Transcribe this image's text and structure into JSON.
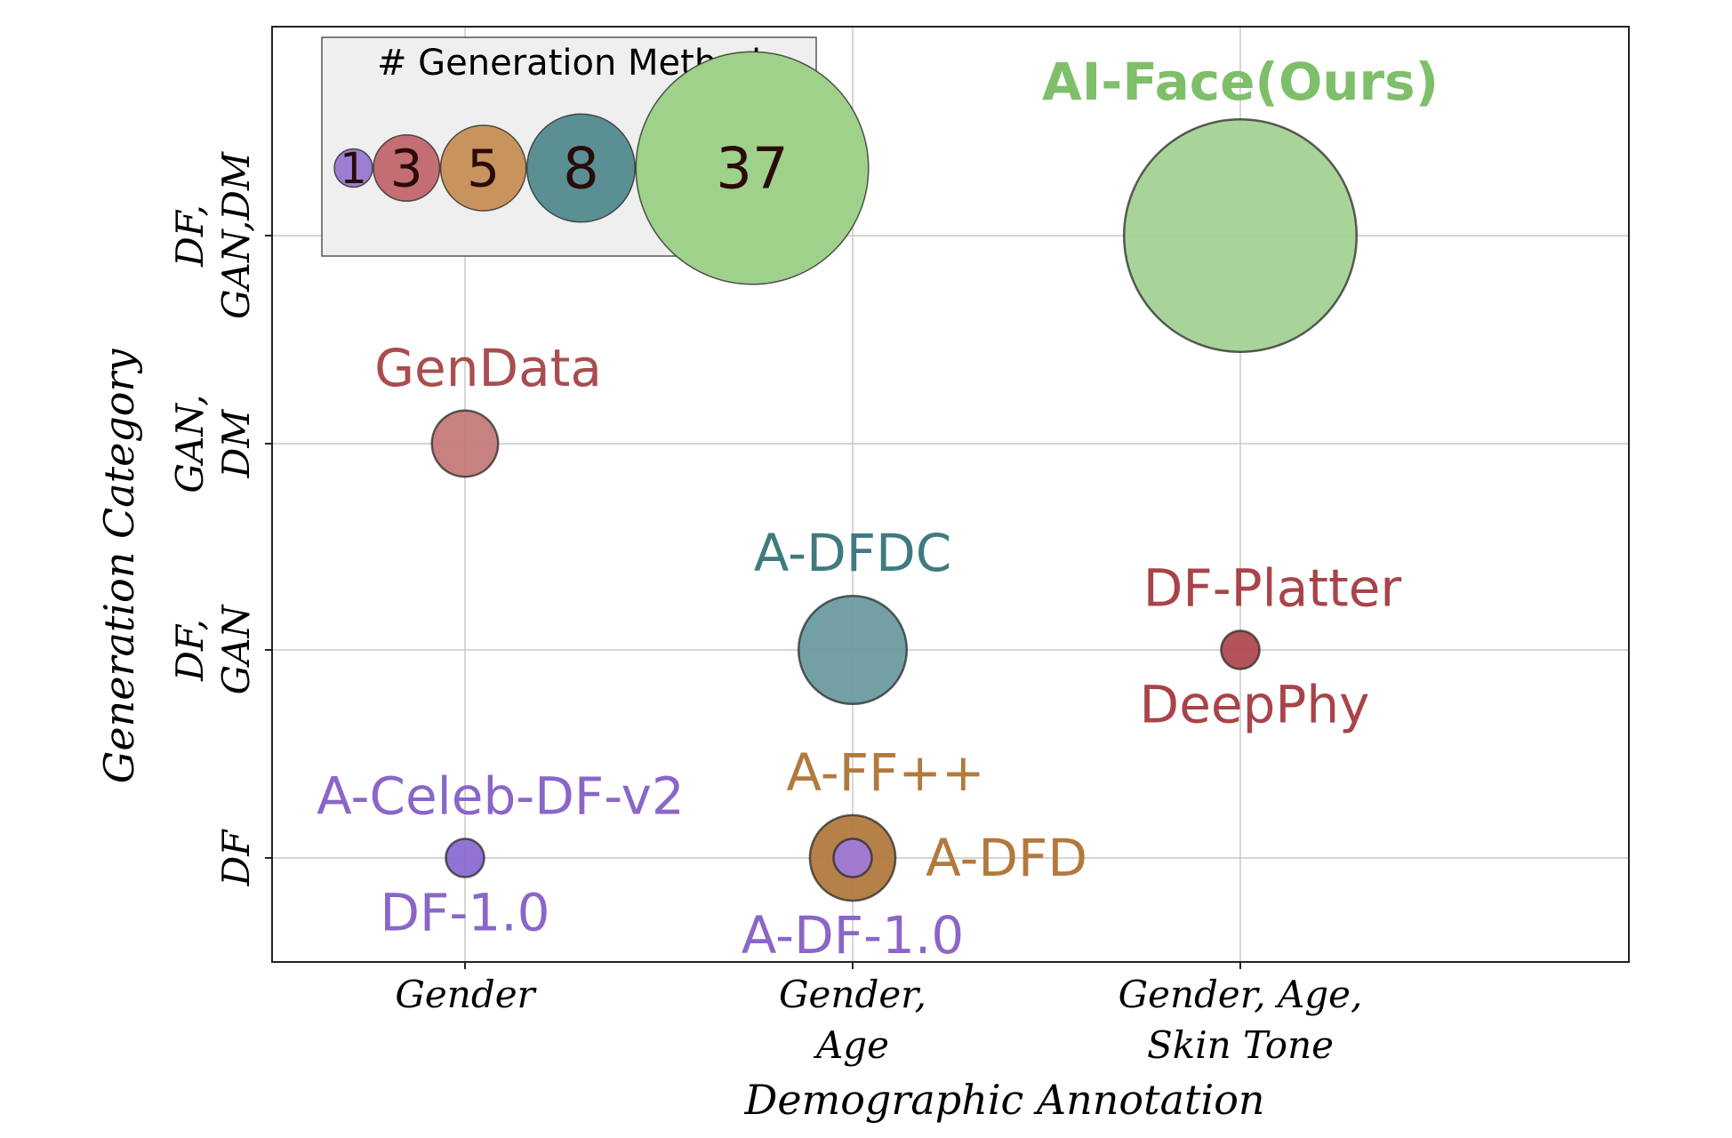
{
  "chart_data": {
    "type": "scatter",
    "title": "",
    "xlabel": "Demographic Annotation",
    "ylabel": "Generation Category",
    "x_categories": [
      [
        "Gender"
      ],
      [
        "Gender,",
        "Age"
      ],
      [
        "Gender, Age,",
        "Skin Tone"
      ]
    ],
    "y_categories": [
      [
        "DF"
      ],
      [
        "DF,",
        "GAN"
      ],
      [
        "GAN,",
        "DM"
      ],
      [
        "DF,",
        "GAN,DM"
      ]
    ],
    "grid": true,
    "legend": {
      "title": "# Generation Method",
      "placement": "top-left",
      "sizes": [
        {
          "value": 1,
          "label": "1",
          "color": "#9b7fd0"
        },
        {
          "value": 3,
          "label": "3",
          "color": "#c46d72"
        },
        {
          "value": 5,
          "label": "5",
          "color": "#c9935d"
        },
        {
          "value": 8,
          "label": "8",
          "color": "#5a8f94"
        },
        {
          "value": 37,
          "label": "37",
          "color": "#9fd18a"
        }
      ]
    },
    "points": [
      {
        "x": 2,
        "y": 3,
        "size": 37,
        "color": "#a3d293",
        "labels": [
          {
            "text": "AI-Face(Ours)",
            "color": "#7fbf6a",
            "pos": "above",
            "bold": true
          }
        ]
      },
      {
        "x": 0,
        "y": 2,
        "size": 3,
        "color": "#c47a7a",
        "labels": [
          {
            "text": "GenData",
            "color": "#a94d50",
            "pos": "above"
          }
        ]
      },
      {
        "x": 1,
        "y": 1,
        "size": 8,
        "color": "#6b9b9f",
        "labels": [
          {
            "text": "A-DFDC",
            "color": "#3e7b7e",
            "pos": "above"
          }
        ]
      },
      {
        "x": 2,
        "y": 1,
        "size": 1,
        "color": "#b04a50",
        "labels": [
          {
            "text": "DF-Platter",
            "color": "#a84449",
            "pos": "above"
          },
          {
            "text": "DeepPhy",
            "color": "#a84449",
            "pos": "below"
          }
        ]
      },
      {
        "x": 0,
        "y": 0,
        "size": 1,
        "color": "#8a6bd0",
        "labels": [
          {
            "text": "A-Celeb-DF-v2",
            "color": "#8a66c8",
            "pos": "above"
          },
          {
            "text": "DF-1.0",
            "color": "#8a66c8",
            "pos": "below"
          }
        ]
      },
      {
        "x": 1,
        "y": 0,
        "size": 5,
        "color": "#b27a3e",
        "labels": [
          {
            "text": "A-FF++",
            "color": "#b2793e",
            "pos": "above"
          },
          {
            "text": "A-DFD",
            "color": "#b2793e",
            "pos": "right"
          }
        ]
      },
      {
        "x": 1,
        "y": 0,
        "size": 1,
        "color": "#a07ad8",
        "labels": [
          {
            "text": "A-DF-1.0",
            "color": "#8a66c8",
            "pos": "below"
          }
        ]
      }
    ]
  }
}
